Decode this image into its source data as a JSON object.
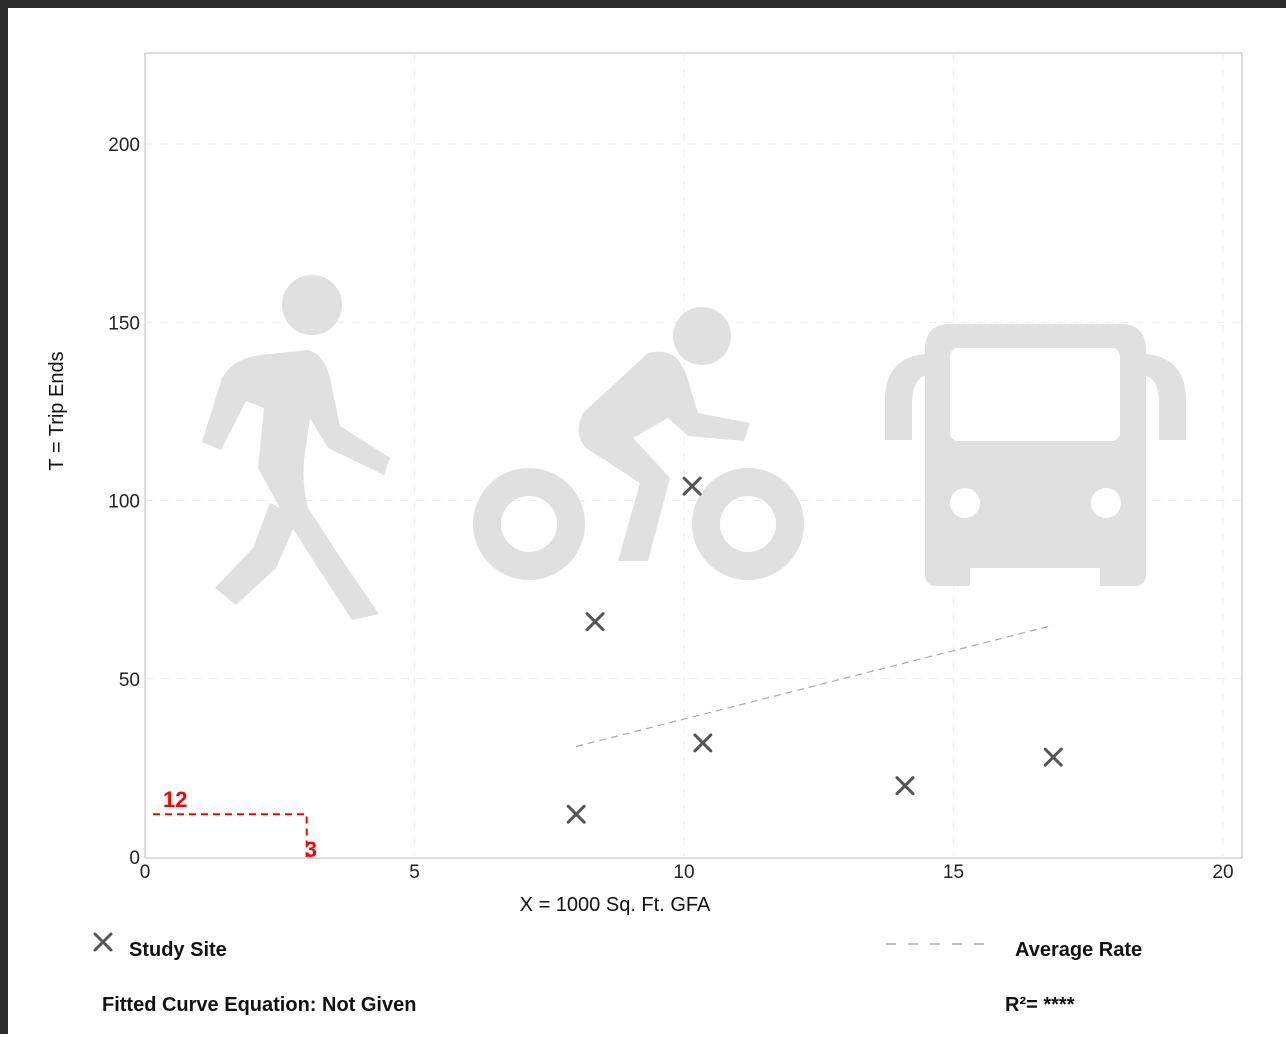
{
  "chart_data": {
    "type": "scatter",
    "title": "",
    "xlabel": "X = 1000 Sq. Ft. GFA",
    "ylabel": "T = Trip Ends",
    "xlim": [
      0,
      20.3
    ],
    "ylim": [
      0,
      225
    ],
    "x_ticks": [
      0,
      5,
      10,
      15,
      20
    ],
    "y_ticks": [
      0,
      50,
      100,
      150,
      200
    ],
    "x_tick_labels": [
      "0",
      "5",
      "10",
      "15",
      "20"
    ],
    "y_tick_labels": [
      "0",
      "50",
      "100",
      "150",
      "200"
    ],
    "grid": true,
    "series": [
      {
        "name": "Study Site",
        "marker": "x",
        "color": "#555555",
        "x": [
          8.0,
          8.35,
          10.15,
          10.35,
          14.1,
          16.85
        ],
        "y": [
          12,
          66,
          104,
          32,
          20,
          28
        ]
      }
    ],
    "average_rate_line": {
      "name": "Average Rate",
      "style": "dashed",
      "color": "#aaaaaa",
      "x": [
        8.0,
        16.85
      ],
      "y": [
        31,
        65
      ]
    },
    "annotation": {
      "color": "#ff0000",
      "x": 3,
      "y": 12,
      "x_label": "3",
      "y_label": "12"
    },
    "background_icons": [
      "walking-person-icon",
      "bicycle-rider-icon",
      "bus-icon"
    ],
    "legend_placement": "bottom"
  },
  "legend": {
    "study_site_label": "Study Site",
    "average_rate_label": "Average Rate",
    "fitted_curve_label": "Fitted Curve Equation: Not Given",
    "r_squared_label": "R²= ****"
  }
}
